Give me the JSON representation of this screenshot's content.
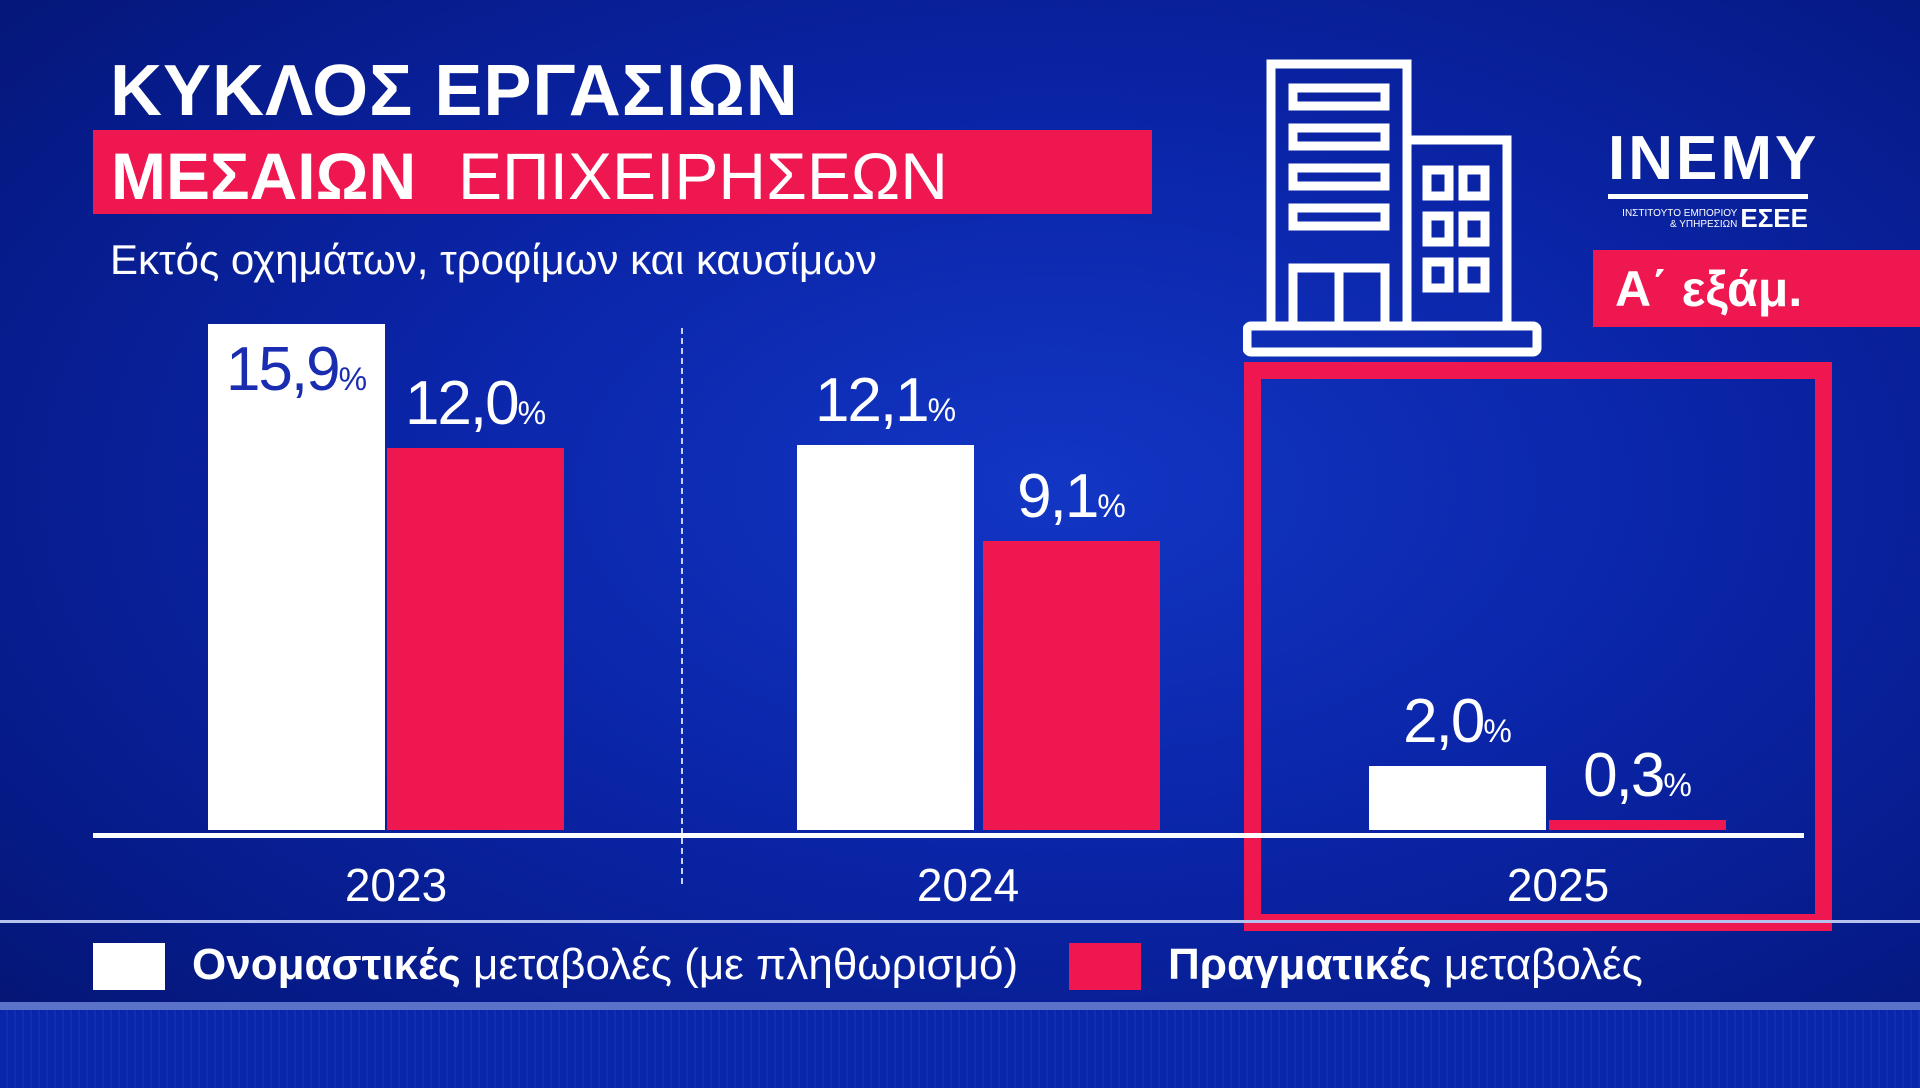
{
  "header": {
    "title": "ΚΥΚΛΟΣ ΕΡΓΑΣΙΩΝ",
    "banner_bold": "ΜΕΣΑΙΩΝ",
    "banner_regular": "ΕΠΙΧΕΙΡΗΣΕΩΝ",
    "subtitle": "Εκτός οχημάτων, τροφίμων και καυσίμων"
  },
  "logo": {
    "name": "INEMY",
    "line1": "ΙΝΣΤΙΤΟΥΤΟ ΕΜΠΟΡΙΟΥ",
    "line2": "& ΥΠΗΡΕΣΙΩΝ",
    "org": "ΕΣΕΕ"
  },
  "period_badge": "Α΄ εξάμ.",
  "icon": "office-building-icon",
  "colors": {
    "background": "#0a24a6",
    "nominal": "#ffffff",
    "real": "#ee174f",
    "highlight": "#ee174f",
    "nominal_label_inside": "#1a2db0"
  },
  "chart_data": {
    "type": "bar",
    "categories": [
      "2023",
      "2024",
      "2025"
    ],
    "series": [
      {
        "name": "Ονομαστικές μεταβολές (με πληθωρισμό)",
        "values": [
          15.9,
          12.1,
          2.0
        ],
        "labels": [
          "15,9",
          "12,1",
          "2,0"
        ]
      },
      {
        "name": "Πραγματικές μεταβολές",
        "values": [
          12.0,
          9.1,
          0.3
        ],
        "labels": [
          "12,0",
          "9,1",
          "0,3"
        ]
      }
    ],
    "unit": "%",
    "highlighted_category": "2025",
    "grid": false,
    "legend": {
      "placement": "bottom",
      "items": [
        {
          "bold": "Ονομαστικές",
          "regular": "μεταβολές (με πληθωρισμό)"
        },
        {
          "bold": "Πραγματικές",
          "regular": "μεταβολές"
        }
      ]
    }
  }
}
